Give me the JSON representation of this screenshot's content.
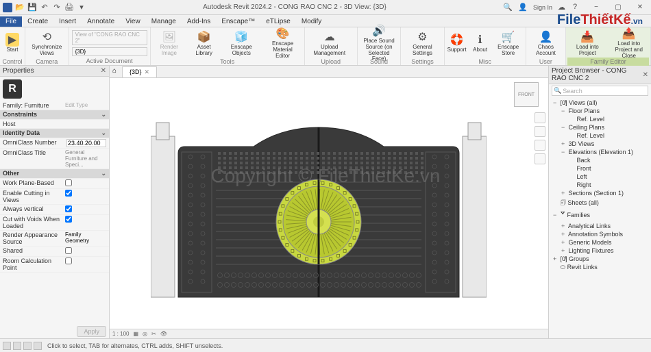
{
  "titlebar": {
    "title": "Autodesk Revit 2024.2 - CONG RAO CNC 2 - 3D View: {3D}",
    "signin": "Sign In"
  },
  "tabs": [
    "File",
    "Create",
    "Insert",
    "Annotate",
    "View",
    "Manage",
    "Add-Ins",
    "Enscape™",
    "eTLipse",
    "Modify"
  ],
  "ribbon": {
    "start": "Start",
    "sync": "Synchronize Views",
    "view_dd1": "View of \"CONG RAO CNC 2\"",
    "view_dd2": "{3D}",
    "active_doc": "Active Document",
    "render_img": "Render Image",
    "render_panorama": "Render Panorama",
    "asset_lib": "Asset Library",
    "enscape_obj": "Enscape Objects",
    "enscape_mat": "Enscape Material Editor",
    "upload_mgmt": "Upload Management",
    "place_sound": "Place Sound Source (on Selected Face)",
    "gen_settings": "General Settings",
    "support": "Support",
    "about": "About",
    "enscape_store": "Enscape Store",
    "chaos_acct": "Chaos Account",
    "load_proj": "Load into Project",
    "load_close": "Load into Project and Close",
    "groups": {
      "control": "Control",
      "camera": "Camera",
      "active_document": "Active Document",
      "tools": "Tools",
      "upload": "Upload Management",
      "sound": "Sound",
      "settings": "Settings",
      "misc": "Misc",
      "user": "User",
      "family": "Family Editor"
    }
  },
  "properties": {
    "title": "Properties",
    "family": "Family: Furniture",
    "edit_type": "Edit Type",
    "sections": {
      "constraints": "Constraints",
      "host": "Host",
      "identity": "Identity Data",
      "omni_num_label": "OmniClass Number",
      "omni_num_value": "23.40.20.00",
      "omni_title_label": "OmniClass Title",
      "omni_title_value": "General Furniture and Speci...",
      "other": "Other",
      "work_plane": "Work Plane-Based",
      "enable_cutting": "Enable Cutting in Views",
      "always_vert": "Always vertical",
      "cut_voids": "Cut with Voids When Loaded",
      "render_src_label": "Render Appearance Source",
      "render_src_value": "Family Geometry",
      "shared": "Shared",
      "room_calc": "Room Calculation Point"
    },
    "apply": "Apply"
  },
  "view": {
    "tab": "{3D}",
    "front": "FRONT",
    "scale": "1 : 100"
  },
  "browser": {
    "title": "Project Browser - CONG RAO CNC 2",
    "search": "Search",
    "items": [
      {
        "l": 1,
        "exp": "−",
        "t": "[0̸] Views (all)"
      },
      {
        "l": 2,
        "exp": "−",
        "t": "Floor Plans"
      },
      {
        "l": 3,
        "exp": "",
        "t": "Ref. Level"
      },
      {
        "l": 2,
        "exp": "−",
        "t": "Ceiling Plans"
      },
      {
        "l": 3,
        "exp": "",
        "t": "Ref. Level"
      },
      {
        "l": 2,
        "exp": "+",
        "t": "3D Views"
      },
      {
        "l": 2,
        "exp": "−",
        "t": "Elevations (Elevation 1)"
      },
      {
        "l": 3,
        "exp": "",
        "t": "Back"
      },
      {
        "l": 3,
        "exp": "",
        "t": "Front"
      },
      {
        "l": 3,
        "exp": "",
        "t": "Left"
      },
      {
        "l": 3,
        "exp": "",
        "t": "Right"
      },
      {
        "l": 2,
        "exp": "+",
        "t": "Sections (Section 1)"
      },
      {
        "l": 1,
        "exp": "",
        "t": "🗊 Sheets (all)"
      },
      {
        "l": 1,
        "exp": "−",
        "t": "🢗 Families"
      },
      {
        "l": 2,
        "exp": "+",
        "t": "Analytical Links"
      },
      {
        "l": 2,
        "exp": "+",
        "t": "Annotation Symbols"
      },
      {
        "l": 2,
        "exp": "+",
        "t": "Generic Models"
      },
      {
        "l": 2,
        "exp": "+",
        "t": "Lighting Fixtures"
      },
      {
        "l": 1,
        "exp": "+",
        "t": "[0̸] Groups"
      },
      {
        "l": 1,
        "exp": "",
        "t": "⬭ Revit Links"
      }
    ]
  },
  "status": "Click to select, TAB for alternates, CTRL adds, SHIFT unselects.",
  "watermark": "Copyright © FileThietKe.vn",
  "logo": {
    "p1": "File",
    "p2": "ThiếtKế",
    "p3": ".vn"
  },
  "gate": {
    "pillar_fill": "#e8e8e8",
    "panel_fill": "#3a3a3a",
    "panel_stroke": "#2a2a2a",
    "medallion_outer": "#c8d840",
    "medallion_inner": "#b8c830",
    "lattice": "#555"
  }
}
